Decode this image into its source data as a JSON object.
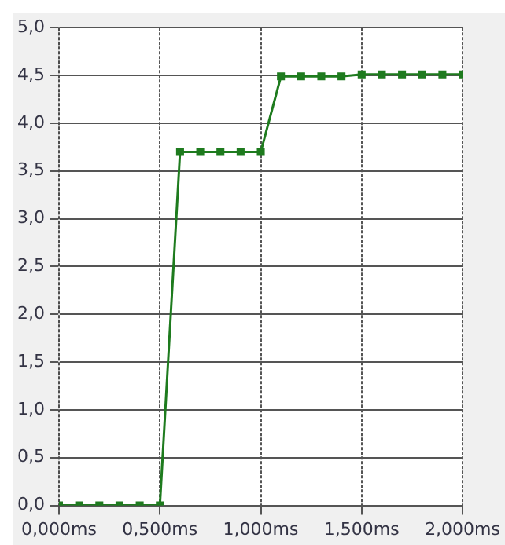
{
  "chart_data": {
    "type": "line",
    "x": [
      0,
      0.1,
      0.2,
      0.3,
      0.4,
      0.5,
      0.6,
      0.7,
      0.8,
      0.9,
      1.0,
      1.1,
      1.2,
      1.3,
      1.4,
      1.5,
      1.6,
      1.7,
      1.8,
      1.9,
      2.0
    ],
    "series": [
      {
        "color": "#1e7b1e",
        "values": [
          0,
          0,
          0,
          0,
          0,
          0,
          3.7,
          3.7,
          3.7,
          3.7,
          3.7,
          4.49,
          4.49,
          4.49,
          4.49,
          4.51,
          4.51,
          4.51,
          4.51,
          4.51,
          4.51
        ]
      }
    ],
    "xlim": [
      0,
      2
    ],
    "xticks": [
      {
        "value": 0,
        "label": "0,000ms"
      },
      {
        "value": 0.5,
        "label": "0,500ms"
      },
      {
        "value": 1,
        "label": "1,000ms"
      },
      {
        "value": 1.5,
        "label": "1,500ms"
      },
      {
        "value": 2,
        "label": "2,000ms"
      }
    ],
    "ylim": [
      0,
      5
    ],
    "yticks": [
      {
        "value": 0,
        "label": "0,0"
      },
      {
        "value": 0.5,
        "label": "0,5"
      },
      {
        "value": 1,
        "label": "1,0"
      },
      {
        "value": 1.5,
        "label": "1,5"
      },
      {
        "value": 2,
        "label": "2,0"
      },
      {
        "value": 2.5,
        "label": "2,5"
      },
      {
        "value": 3,
        "label": "3,0"
      },
      {
        "value": 3.5,
        "label": "3,5"
      },
      {
        "value": 4,
        "label": "4,0"
      },
      {
        "value": 4.5,
        "label": "4,5"
      },
      {
        "value": 5,
        "label": "5,0"
      }
    ],
    "grid": true,
    "marker": "square",
    "line_style": "solid",
    "legend": false
  }
}
